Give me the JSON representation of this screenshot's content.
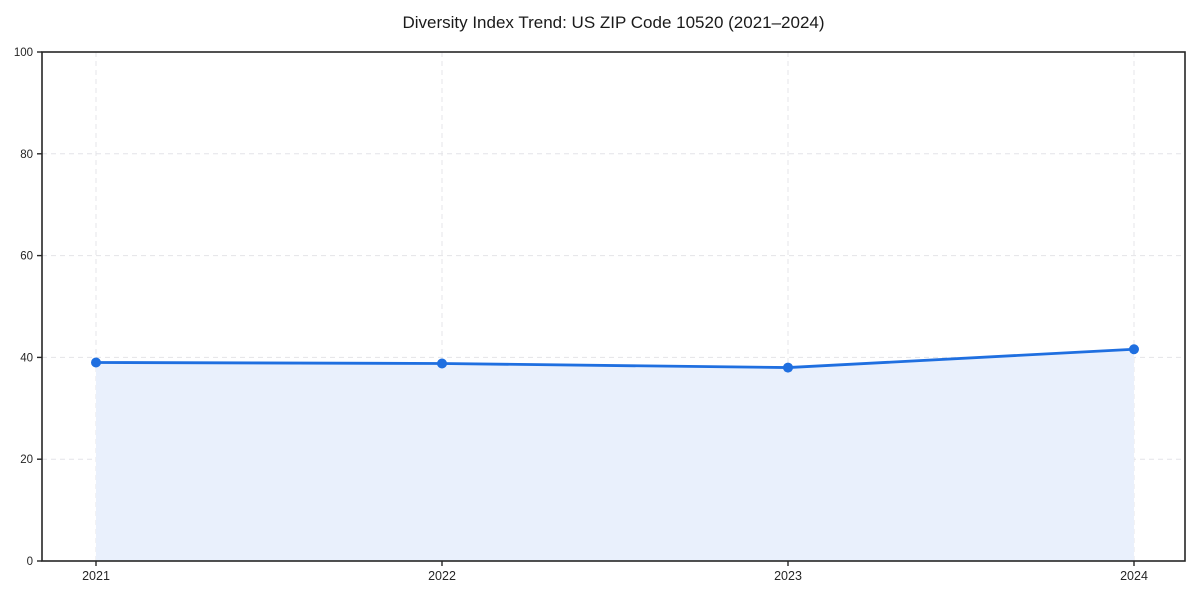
{
  "chart_data": {
    "type": "area",
    "title": "Diversity Index Trend: US ZIP Code 10520 (2021–2024)",
    "x": [
      "2021",
      "2022",
      "2023",
      "2024"
    ],
    "series": [
      {
        "name": "Diversity Index",
        "values": [
          39.0,
          38.8,
          38.0,
          41.6
        ]
      }
    ],
    "xlabel": "",
    "ylabel": "",
    "ylim": [
      0,
      100
    ],
    "yticks": [
      0,
      20,
      40,
      60,
      80,
      100
    ],
    "grid": true,
    "grid_style": "dashed",
    "legend": "none",
    "line_color": "#1f6fe0",
    "marker_color": "#1f6fe0",
    "fill_color": "#e9f0fc",
    "grid_color": "#e4e4e8",
    "axis_color": "#262626",
    "background_color": "#ffffff"
  }
}
